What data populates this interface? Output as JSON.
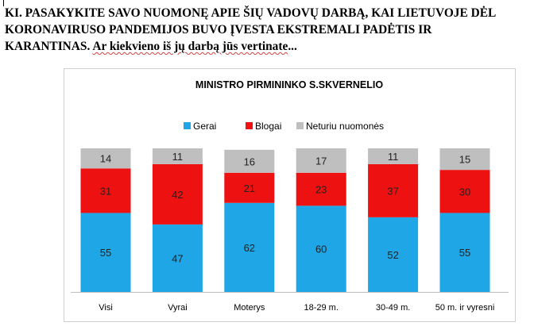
{
  "question": {
    "line1": "KI. PASAKYKITE SAVO NUOMONĘ APIE ŠIŲ VADOVŲ DARBĄ, KAI LIETUVOJE DĖL",
    "line2": "KORONAVIRUSO PANDEMIJOS BUVO ĮVESTA EKSTREMALI PADĖTIS IR",
    "line3_prefix": "KARANTINAS.  ",
    "line3_underlined": "Ar kiekvieno iš jų darbą jūs vertinate",
    "line3_suffix": "..."
  },
  "chart_data": {
    "type": "bar",
    "stacked": true,
    "title": "MINISTRO PIRMININKO  S.SKVERNELIO",
    "categories": [
      "Visi",
      "Vyrai",
      "Moterys",
      "18-29 m.",
      "30-49 m.",
      "50 m. ir vyresni"
    ],
    "series": [
      {
        "name": "Gerai",
        "color": "#1ea6e6",
        "values": [
          55,
          47,
          62,
          60,
          52,
          55
        ]
      },
      {
        "name": "Blogai",
        "color": "#ee1111",
        "values": [
          31,
          42,
          21,
          23,
          37,
          30
        ]
      },
      {
        "name": "Neturiu nuomonės",
        "color": "#bfbfbf",
        "values": [
          14,
          11,
          16,
          17,
          11,
          15
        ]
      }
    ],
    "ylim": [
      0,
      100
    ],
    "legend": "top",
    "grid": false,
    "data_labels": true
  }
}
